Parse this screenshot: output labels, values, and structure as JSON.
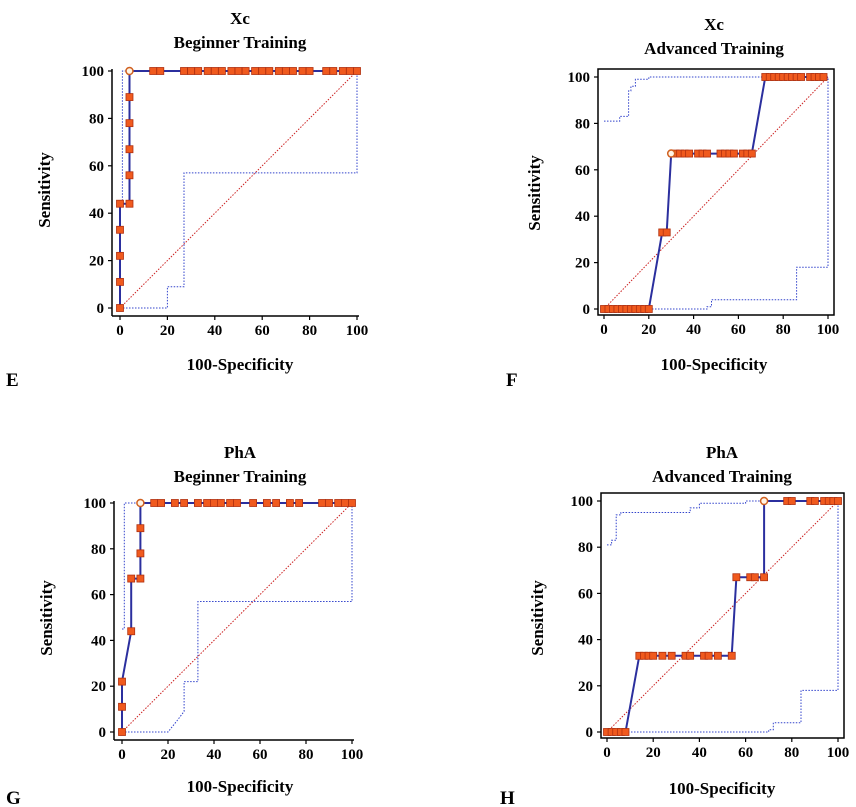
{
  "colors": {
    "roc_line": "#2b2f9e",
    "marker_fill": "#f05a1e",
    "marker_stroke": "#b03010",
    "cutoff_fill": "#fff5e6",
    "cutoff_stroke": "#d06020",
    "diagonal": "#cc2222",
    "ci": "#3344cc"
  },
  "chart_data": [
    {
      "type": "line",
      "panel_letter": "E",
      "title_line1": "Xc",
      "title_line2": "Beginner Training",
      "xlabel": "100-Specificity",
      "ylabel": "Sensitivity",
      "xlim": [
        0,
        100
      ],
      "ylim": [
        0,
        100
      ],
      "xticks": [
        0,
        20,
        40,
        60,
        80,
        100
      ],
      "yticks": [
        0,
        20,
        40,
        60,
        80,
        100
      ],
      "x_tick_labels": [
        "0",
        "20",
        "40",
        "60",
        "80",
        "100"
      ],
      "y_tick_labels": [
        "0",
        "20",
        "40",
        "60",
        "80",
        "100"
      ],
      "roc": [
        [
          0,
          0
        ],
        [
          0,
          11
        ],
        [
          0,
          22
        ],
        [
          0,
          33
        ],
        [
          0,
          44
        ],
        [
          4,
          44
        ],
        [
          4,
          56
        ],
        [
          4,
          67
        ],
        [
          4,
          78
        ],
        [
          4,
          89
        ],
        [
          4,
          100
        ],
        [
          14,
          100
        ],
        [
          17,
          100
        ],
        [
          27,
          100
        ],
        [
          30,
          100
        ],
        [
          33,
          100
        ],
        [
          37,
          100
        ],
        [
          40,
          100
        ],
        [
          43,
          100
        ],
        [
          47,
          100
        ],
        [
          50,
          100
        ],
        [
          53,
          100
        ],
        [
          57,
          100
        ],
        [
          60,
          100
        ],
        [
          63,
          100
        ],
        [
          67,
          100
        ],
        [
          70,
          100
        ],
        [
          73,
          100
        ],
        [
          77,
          100
        ],
        [
          80,
          100
        ],
        [
          87,
          100
        ],
        [
          90,
          100
        ],
        [
          94,
          100
        ],
        [
          97,
          100
        ],
        [
          100,
          100
        ]
      ],
      "markers": [
        [
          0,
          0
        ],
        [
          0,
          11
        ],
        [
          0,
          22
        ],
        [
          0,
          33
        ],
        [
          0,
          44
        ],
        [
          4,
          44
        ],
        [
          4,
          56
        ],
        [
          4,
          67
        ],
        [
          4,
          78
        ],
        [
          4,
          89
        ],
        [
          14,
          100
        ],
        [
          17,
          100
        ],
        [
          27,
          100
        ],
        [
          30,
          100
        ],
        [
          33,
          100
        ],
        [
          37,
          100
        ],
        [
          40,
          100
        ],
        [
          43,
          100
        ],
        [
          47,
          100
        ],
        [
          50,
          100
        ],
        [
          53,
          100
        ],
        [
          57,
          100
        ],
        [
          60,
          100
        ],
        [
          63,
          100
        ],
        [
          67,
          100
        ],
        [
          70,
          100
        ],
        [
          73,
          100
        ],
        [
          77,
          100
        ],
        [
          80,
          100
        ],
        [
          87,
          100
        ],
        [
          90,
          100
        ],
        [
          94,
          100
        ],
        [
          97,
          100
        ],
        [
          100,
          100
        ]
      ],
      "cutoff": [
        4,
        100
      ],
      "ci_upper": [
        [
          0,
          45
        ],
        [
          1,
          45
        ],
        [
          1,
          100
        ],
        [
          100,
          100
        ]
      ],
      "ci_lower": [
        [
          0,
          0
        ],
        [
          20,
          0
        ],
        [
          20,
          9
        ],
        [
          27,
          9
        ],
        [
          27,
          57
        ],
        [
          100,
          57
        ],
        [
          100,
          100
        ]
      ]
    },
    {
      "type": "line",
      "panel_letter": "F",
      "title_line1": "Xc",
      "title_line2": "Advanced Training",
      "xlabel": "100-Specificity",
      "ylabel": "Sensitivity",
      "xlim": [
        0,
        100
      ],
      "ylim": [
        0,
        100
      ],
      "xticks": [
        0,
        20,
        40,
        60,
        80,
        100
      ],
      "yticks": [
        0,
        20,
        40,
        60,
        80,
        100
      ],
      "x_tick_labels": [
        "0",
        "20",
        "40",
        "60",
        "80",
        "100"
      ],
      "y_tick_labels": [
        "0",
        "20",
        "40",
        "60",
        "80",
        "100"
      ],
      "roc": [
        [
          0,
          0
        ],
        [
          2,
          0
        ],
        [
          4,
          0
        ],
        [
          6,
          0
        ],
        [
          8,
          0
        ],
        [
          10,
          0
        ],
        [
          12,
          0
        ],
        [
          14,
          0
        ],
        [
          16,
          0
        ],
        [
          18,
          0
        ],
        [
          20,
          0
        ],
        [
          26,
          33
        ],
        [
          28,
          33
        ],
        [
          30,
          67
        ],
        [
          32,
          67
        ],
        [
          34,
          67
        ],
        [
          36,
          67
        ],
        [
          38,
          67
        ],
        [
          42,
          67
        ],
        [
          44,
          67
        ],
        [
          46,
          67
        ],
        [
          52,
          67
        ],
        [
          54,
          67
        ],
        [
          56,
          67
        ],
        [
          58,
          67
        ],
        [
          62,
          67
        ],
        [
          64,
          67
        ],
        [
          66,
          67
        ],
        [
          72,
          100
        ],
        [
          74,
          100
        ],
        [
          76,
          100
        ],
        [
          78,
          100
        ],
        [
          80,
          100
        ],
        [
          82,
          100
        ],
        [
          84,
          100
        ],
        [
          86,
          100
        ],
        [
          88,
          100
        ],
        [
          92,
          100
        ],
        [
          94,
          100
        ],
        [
          96,
          100
        ],
        [
          98,
          100
        ]
      ],
      "markers": [
        [
          0,
          0
        ],
        [
          2,
          0
        ],
        [
          4,
          0
        ],
        [
          6,
          0
        ],
        [
          8,
          0
        ],
        [
          10,
          0
        ],
        [
          12,
          0
        ],
        [
          14,
          0
        ],
        [
          16,
          0
        ],
        [
          18,
          0
        ],
        [
          20,
          0
        ],
        [
          26,
          33
        ],
        [
          28,
          33
        ],
        [
          32,
          67
        ],
        [
          34,
          67
        ],
        [
          36,
          67
        ],
        [
          38,
          67
        ],
        [
          42,
          67
        ],
        [
          44,
          67
        ],
        [
          46,
          67
        ],
        [
          52,
          67
        ],
        [
          54,
          67
        ],
        [
          56,
          67
        ],
        [
          58,
          67
        ],
        [
          62,
          67
        ],
        [
          64,
          67
        ],
        [
          66,
          67
        ],
        [
          72,
          100
        ],
        [
          74,
          100
        ],
        [
          76,
          100
        ],
        [
          78,
          100
        ],
        [
          80,
          100
        ],
        [
          82,
          100
        ],
        [
          84,
          100
        ],
        [
          86,
          100
        ],
        [
          88,
          100
        ],
        [
          92,
          100
        ],
        [
          94,
          100
        ],
        [
          96,
          100
        ],
        [
          98,
          100
        ]
      ],
      "cutoff": [
        30,
        67
      ],
      "ci_upper": [
        [
          0,
          81
        ],
        [
          7,
          81
        ],
        [
          7,
          83
        ],
        [
          11,
          83
        ],
        [
          11,
          94
        ],
        [
          12,
          94
        ],
        [
          12,
          96
        ],
        [
          14,
          96
        ],
        [
          14,
          99
        ],
        [
          20,
          99
        ],
        [
          20,
          100
        ],
        [
          100,
          100
        ]
      ],
      "ci_lower": [
        [
          0,
          0
        ],
        [
          46,
          0
        ],
        [
          46,
          1
        ],
        [
          48,
          1
        ],
        [
          48,
          4
        ],
        [
          86,
          4
        ],
        [
          86,
          18
        ],
        [
          100,
          18
        ],
        [
          100,
          100
        ]
      ]
    },
    {
      "type": "line",
      "panel_letter": "G",
      "title_line1": "PhA",
      "title_line2": "Beginner Training",
      "xlabel": "100-Specificity",
      "ylabel": "Sensitivity",
      "xlim": [
        0,
        100
      ],
      "ylim": [
        0,
        100
      ],
      "xticks": [
        0,
        20,
        40,
        60,
        80,
        100
      ],
      "yticks": [
        0,
        20,
        40,
        60,
        80,
        100
      ],
      "x_tick_labels": [
        "0",
        "20",
        "40",
        "60",
        "80",
        "100"
      ],
      "y_tick_labels": [
        "0",
        "20",
        "40",
        "60",
        "80",
        "100"
      ],
      "roc": [
        [
          0,
          0
        ],
        [
          0,
          11
        ],
        [
          0,
          22
        ],
        [
          4,
          44
        ],
        [
          4,
          67
        ],
        [
          8,
          67
        ],
        [
          8,
          78
        ],
        [
          8,
          89
        ],
        [
          8,
          100
        ],
        [
          14,
          100
        ],
        [
          17,
          100
        ],
        [
          23,
          100
        ],
        [
          27,
          100
        ],
        [
          33,
          100
        ],
        [
          37,
          100
        ],
        [
          40,
          100
        ],
        [
          43,
          100
        ],
        [
          47,
          100
        ],
        [
          50,
          100
        ],
        [
          57,
          100
        ],
        [
          63,
          100
        ],
        [
          67,
          100
        ],
        [
          73,
          100
        ],
        [
          77,
          100
        ],
        [
          87,
          100
        ],
        [
          90,
          100
        ],
        [
          94,
          100
        ],
        [
          97,
          100
        ],
        [
          100,
          100
        ]
      ],
      "markers": [
        [
          0,
          0
        ],
        [
          0,
          11
        ],
        [
          0,
          22
        ],
        [
          4,
          44
        ],
        [
          4,
          67
        ],
        [
          8,
          67
        ],
        [
          8,
          78
        ],
        [
          8,
          89
        ],
        [
          14,
          100
        ],
        [
          17,
          100
        ],
        [
          23,
          100
        ],
        [
          27,
          100
        ],
        [
          33,
          100
        ],
        [
          37,
          100
        ],
        [
          40,
          100
        ],
        [
          43,
          100
        ],
        [
          47,
          100
        ],
        [
          50,
          100
        ],
        [
          57,
          100
        ],
        [
          63,
          100
        ],
        [
          67,
          100
        ],
        [
          73,
          100
        ],
        [
          77,
          100
        ],
        [
          87,
          100
        ],
        [
          90,
          100
        ],
        [
          94,
          100
        ],
        [
          97,
          100
        ],
        [
          100,
          100
        ]
      ],
      "cutoff": [
        8,
        100
      ],
      "ci_upper": [
        [
          0,
          45
        ],
        [
          1,
          45
        ],
        [
          1,
          100
        ],
        [
          100,
          100
        ]
      ],
      "ci_lower": [
        [
          0,
          0
        ],
        [
          20,
          0
        ],
        [
          24,
          5
        ],
        [
          27,
          9
        ],
        [
          27,
          22
        ],
        [
          33,
          22
        ],
        [
          33,
          57
        ],
        [
          100,
          57
        ],
        [
          100,
          100
        ]
      ]
    },
    {
      "type": "line",
      "panel_letter": "H",
      "title_line1": "PhA",
      "title_line2": "Advanced Training",
      "xlabel": "100-Specificity",
      "ylabel": "Sensitivity",
      "xlim": [
        0,
        100
      ],
      "ylim": [
        0,
        100
      ],
      "xticks": [
        0,
        20,
        40,
        60,
        80,
        100
      ],
      "yticks": [
        0,
        20,
        40,
        60,
        80,
        100
      ],
      "x_tick_labels": [
        "0",
        "20",
        "40",
        "60",
        "80",
        "100"
      ],
      "y_tick_labels": [
        "0",
        "20",
        "40",
        "60",
        "80",
        "100"
      ],
      "roc": [
        [
          0,
          0
        ],
        [
          2,
          0
        ],
        [
          4,
          0
        ],
        [
          6,
          0
        ],
        [
          8,
          0
        ],
        [
          14,
          33
        ],
        [
          16,
          33
        ],
        [
          18,
          33
        ],
        [
          20,
          33
        ],
        [
          24,
          33
        ],
        [
          28,
          33
        ],
        [
          34,
          33
        ],
        [
          36,
          33
        ],
        [
          42,
          33
        ],
        [
          44,
          33
        ],
        [
          48,
          33
        ],
        [
          54,
          33
        ],
        [
          56,
          67
        ],
        [
          62,
          67
        ],
        [
          64,
          67
        ],
        [
          68,
          67
        ],
        [
          68,
          100
        ],
        [
          78,
          100
        ],
        [
          80,
          100
        ],
        [
          88,
          100
        ],
        [
          90,
          100
        ],
        [
          94,
          100
        ],
        [
          96,
          100
        ],
        [
          98,
          100
        ],
        [
          100,
          100
        ]
      ],
      "markers": [
        [
          0,
          0
        ],
        [
          2,
          0
        ],
        [
          4,
          0
        ],
        [
          6,
          0
        ],
        [
          8,
          0
        ],
        [
          14,
          33
        ],
        [
          16,
          33
        ],
        [
          18,
          33
        ],
        [
          20,
          33
        ],
        [
          24,
          33
        ],
        [
          28,
          33
        ],
        [
          34,
          33
        ],
        [
          36,
          33
        ],
        [
          42,
          33
        ],
        [
          44,
          33
        ],
        [
          48,
          33
        ],
        [
          54,
          33
        ],
        [
          56,
          67
        ],
        [
          62,
          67
        ],
        [
          64,
          67
        ],
        [
          68,
          67
        ],
        [
          78,
          100
        ],
        [
          80,
          100
        ],
        [
          88,
          100
        ],
        [
          90,
          100
        ],
        [
          94,
          100
        ],
        [
          96,
          100
        ],
        [
          98,
          100
        ],
        [
          100,
          100
        ]
      ],
      "cutoff": [
        68,
        100
      ],
      "ci_upper": [
        [
          0,
          81
        ],
        [
          2,
          81
        ],
        [
          2,
          83
        ],
        [
          4,
          83
        ],
        [
          4,
          94
        ],
        [
          6,
          94
        ],
        [
          6,
          95
        ],
        [
          36,
          95
        ],
        [
          36,
          97
        ],
        [
          40,
          97
        ],
        [
          40,
          99
        ],
        [
          60,
          99
        ],
        [
          60,
          100
        ],
        [
          100,
          100
        ]
      ],
      "ci_lower": [
        [
          0,
          0
        ],
        [
          70,
          0
        ],
        [
          70,
          1
        ],
        [
          72,
          1
        ],
        [
          72,
          4
        ],
        [
          84,
          4
        ],
        [
          84,
          18
        ],
        [
          100,
          18
        ],
        [
          100,
          100
        ]
      ]
    }
  ]
}
